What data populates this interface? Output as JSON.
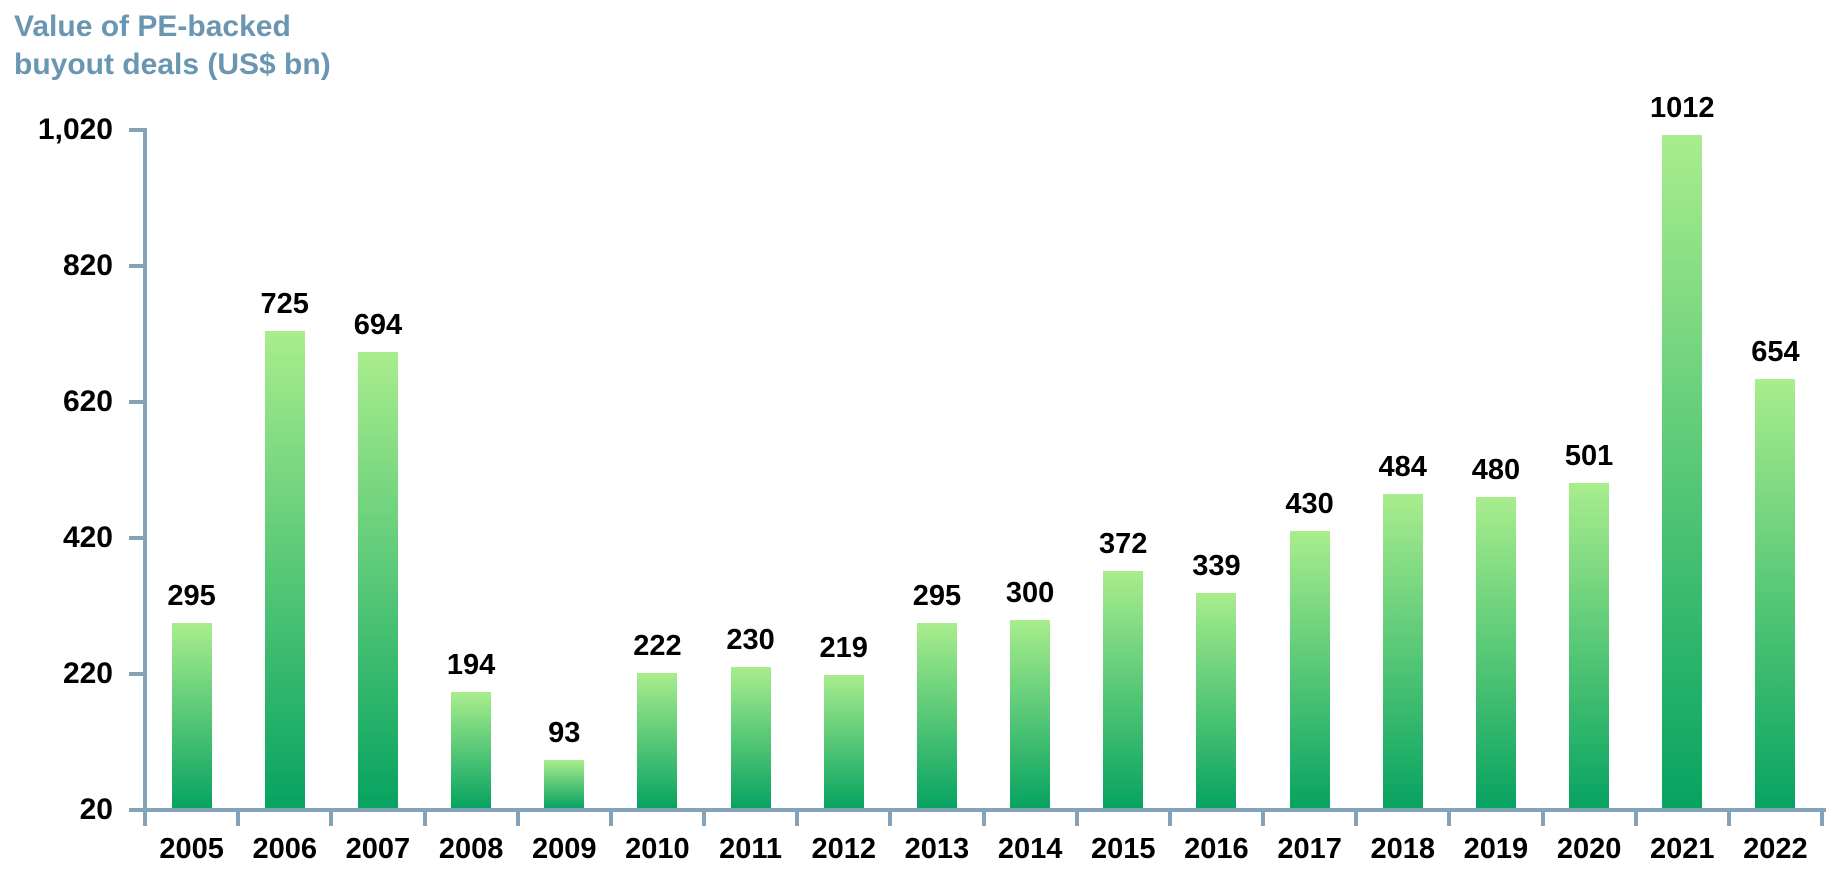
{
  "chart_data": {
    "type": "bar",
    "title": "Value of PE-backed buyout deals (US$ bn)",
    "categories": [
      "2005",
      "2006",
      "2007",
      "2008",
      "2009",
      "2010",
      "2011",
      "2012",
      "2013",
      "2014",
      "2015",
      "2016",
      "2017",
      "2018",
      "2019",
      "2020",
      "2021",
      "2022"
    ],
    "values": [
      295,
      725,
      694,
      194,
      93,
      222,
      230,
      219,
      295,
      300,
      372,
      339,
      430,
      484,
      480,
      501,
      1012,
      654
    ],
    "data_labels": [
      "295",
      "725",
      "694",
      "194",
      "93",
      "222",
      "230",
      "219",
      "295",
      "300",
      "372",
      "339",
      "430",
      "484",
      "480",
      "501",
      "1012",
      "654"
    ],
    "xlabel": "",
    "ylabel": "Value of PE-backed buyout deals (US$ bn)",
    "ylim": [
      20,
      1020
    ],
    "yticks": [
      20,
      220,
      420,
      620,
      820,
      1020
    ],
    "ytick_labels": [
      "20",
      "220",
      "420",
      "620",
      "820",
      "1,020"
    ],
    "grid": false,
    "legend": "none"
  },
  "colors": {
    "title_text": "#6996b0",
    "axis": "#84a2b8",
    "label_text": "#000000",
    "bar_gradient_top": "#a9ed8d",
    "bar_gradient_bottom": "#07a361",
    "background": "#ffffff"
  }
}
